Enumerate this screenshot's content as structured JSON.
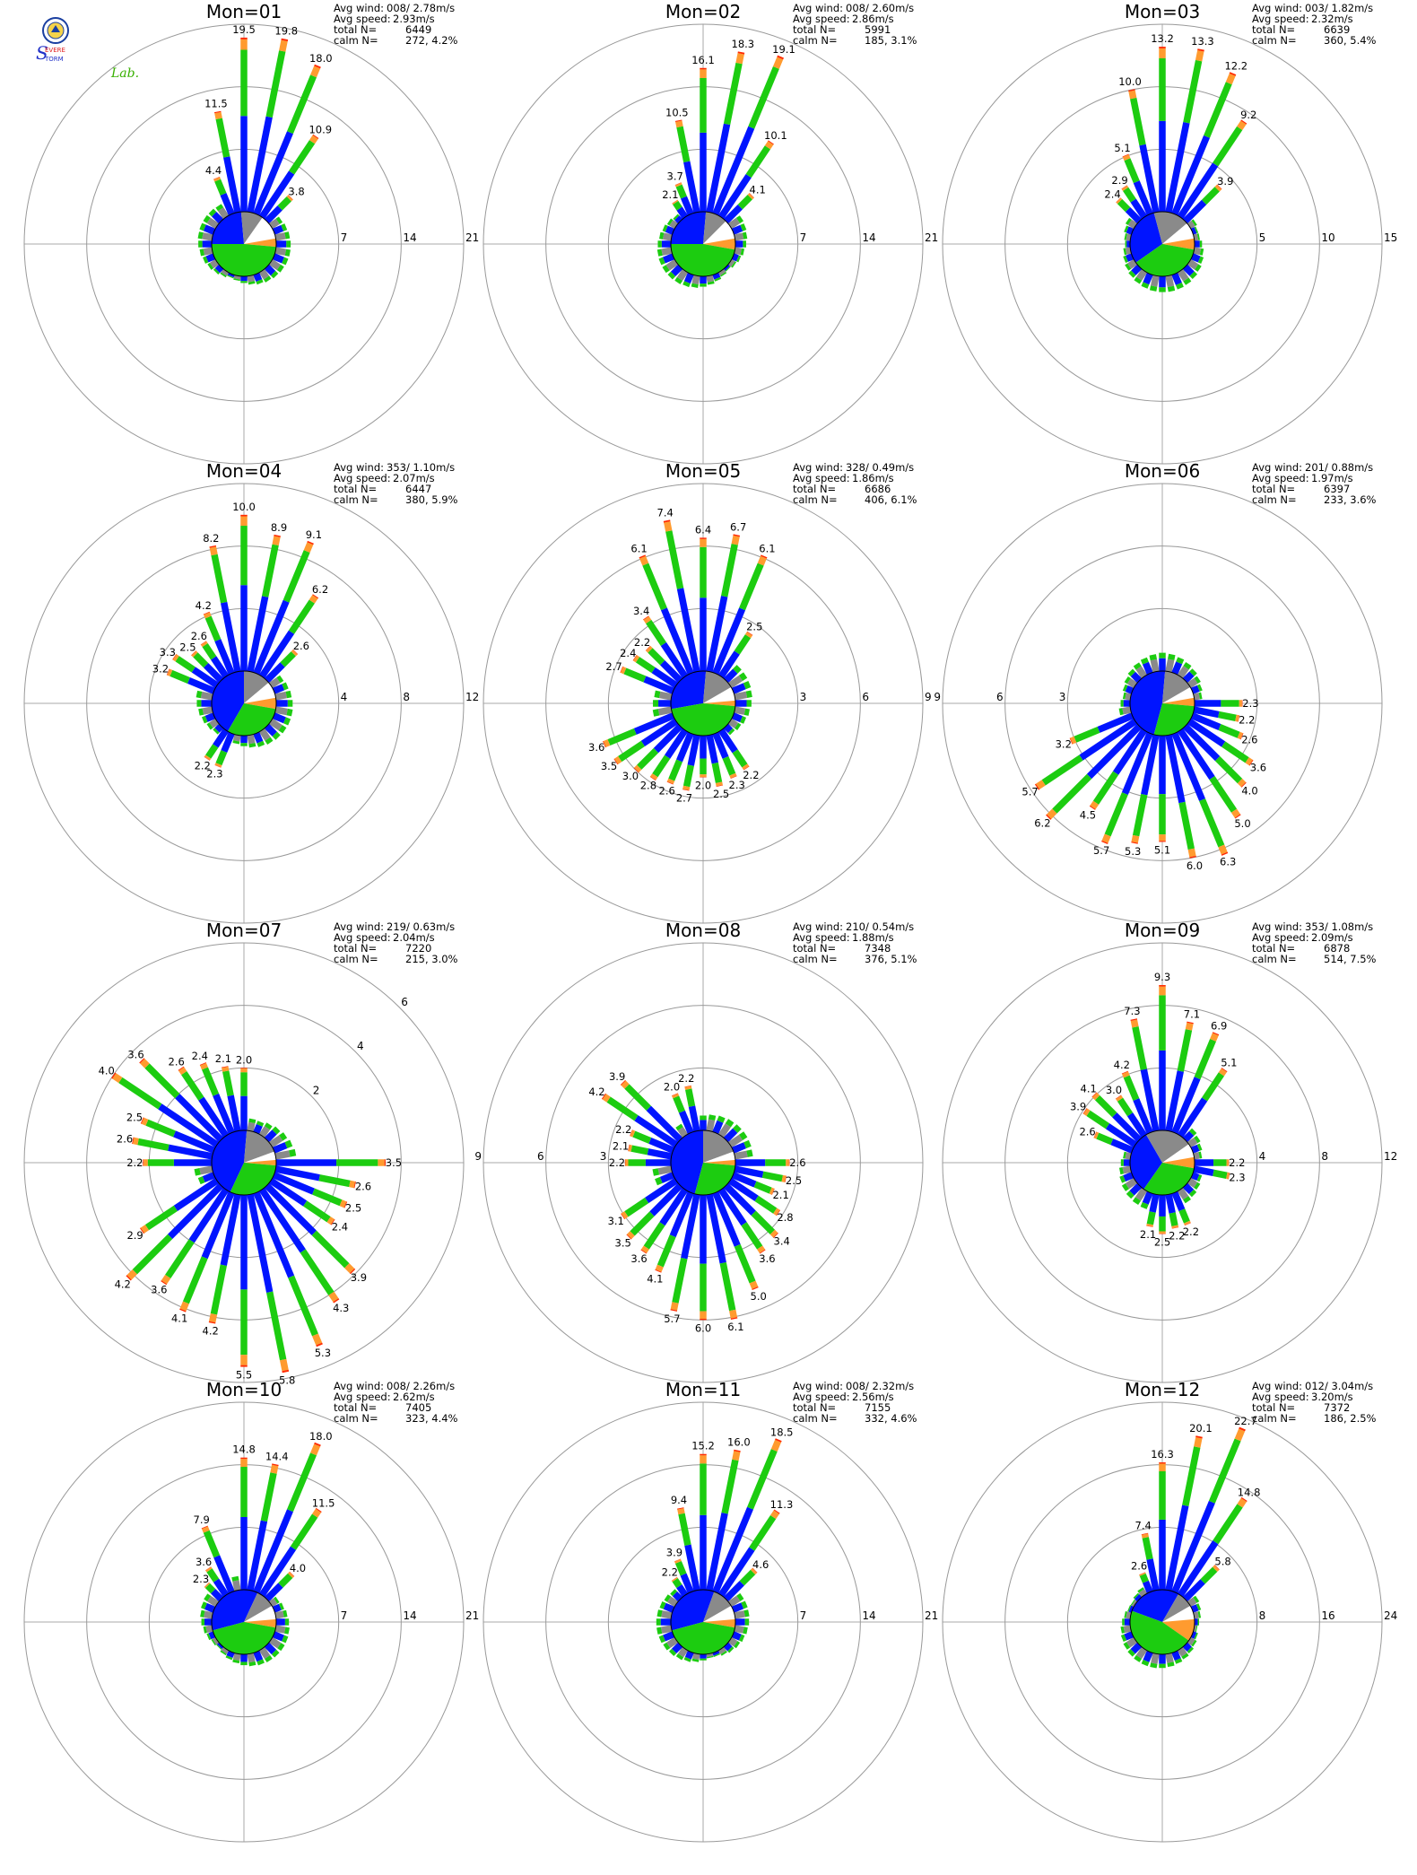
{
  "logo": {
    "text": "Severe Storm Lab."
  },
  "colors": {
    "blue": "#0014ff",
    "green": "#1ccc10",
    "orange": "#ff9b2f",
    "red": "#ff2a00",
    "gray": "#8a8a8a",
    "grid": "#999999",
    "axis": "#aaaaaa"
  },
  "chart_data": [
    {
      "type": "windrose",
      "title": "Mon=01",
      "avg_wind": "008/ 2.78m/s",
      "avg_speed": "2.93m/s",
      "total_n": "6449",
      "calm_n": "272,   4.2%",
      "rmax": 21,
      "rings": [
        "7",
        "14",
        "21"
      ],
      "ring_angle": 90,
      "labeled": [
        {
          "dir": 337.5,
          "v": 4.4
        },
        {
          "dir": 348.75,
          "v": 11.5
        },
        {
          "dir": 0,
          "v": 19.5
        },
        {
          "dir": 11.25,
          "v": 19.8
        },
        {
          "dir": 22.5,
          "v": 18.0
        },
        {
          "dir": 33.75,
          "v": 10.9
        },
        {
          "dir": 45,
          "v": 3.8
        }
      ],
      "pie": [
        {
          "c": "blue",
          "a": 270,
          "b": 355
        },
        {
          "c": "gray",
          "a": 355,
          "b": 35
        },
        {
          "c": "white",
          "a": 35,
          "b": 80
        },
        {
          "c": "orange",
          "a": 80,
          "b": 95
        },
        {
          "c": "green",
          "a": 95,
          "b": 270
        }
      ]
    },
    {
      "type": "windrose",
      "title": "Mon=02",
      "avg_wind": "008/ 2.60m/s",
      "avg_speed": "2.86m/s",
      "total_n": "5991",
      "calm_n": "185,   3.1%",
      "rmax": 21,
      "rings": [
        "7",
        "14",
        "21"
      ],
      "ring_angle": 90,
      "labeled": [
        {
          "dir": 326.25,
          "v": 2.1
        },
        {
          "dir": 337.5,
          "v": 3.7
        },
        {
          "dir": 348.75,
          "v": 10.5
        },
        {
          "dir": 0,
          "v": 16.1
        },
        {
          "dir": 11.25,
          "v": 18.3
        },
        {
          "dir": 22.5,
          "v": 19.1
        },
        {
          "dir": 33.75,
          "v": 10.1
        },
        {
          "dir": 45,
          "v": 4.1
        }
      ],
      "pie": [
        {
          "c": "blue",
          "a": 270,
          "b": 5
        },
        {
          "c": "gray",
          "a": 5,
          "b": 45
        },
        {
          "c": "white",
          "a": 45,
          "b": 80
        },
        {
          "c": "orange",
          "a": 80,
          "b": 100
        },
        {
          "c": "green",
          "a": 100,
          "b": 270
        }
      ]
    },
    {
      "type": "windrose",
      "title": "Mon=03",
      "avg_wind": "003/ 1.82m/s",
      "avg_speed": "2.32m/s",
      "total_n": "6639",
      "calm_n": "360,   5.4%",
      "rmax": 15,
      "rings": [
        "5",
        "10",
        "15"
      ],
      "ring_angle": 90,
      "labeled": [
        {
          "dir": 315,
          "v": 2.4
        },
        {
          "dir": 326.25,
          "v": 2.9
        },
        {
          "dir": 337.5,
          "v": 5.1
        },
        {
          "dir": 348.75,
          "v": 10.0
        },
        {
          "dir": 0,
          "v": 13.2
        },
        {
          "dir": 11.25,
          "v": 13.3
        },
        {
          "dir": 22.5,
          "v": 12.2
        },
        {
          "dir": 33.75,
          "v": 9.2
        },
        {
          "dir": 45,
          "v": 3.9
        }
      ],
      "pie": [
        {
          "c": "blue",
          "a": 235,
          "b": 345
        },
        {
          "c": "gray",
          "a": 345,
          "b": 50
        },
        {
          "c": "white",
          "a": 50,
          "b": 80
        },
        {
          "c": "orange",
          "a": 80,
          "b": 100
        },
        {
          "c": "green",
          "a": 100,
          "b": 235
        }
      ]
    },
    {
      "type": "windrose",
      "title": "Mon=04",
      "avg_wind": "353/ 1.10m/s",
      "avg_speed": "2.07m/s",
      "total_n": "6447",
      "calm_n": "380,   5.9%",
      "rmax": 12,
      "rings": [
        "4",
        "8",
        "12"
      ],
      "ring_angle": 90,
      "labeled": [
        {
          "dir": 292.5,
          "v": 3.2
        },
        {
          "dir": 303.75,
          "v": 3.3
        },
        {
          "dir": 315,
          "v": 2.5
        },
        {
          "dir": 326.25,
          "v": 2.6
        },
        {
          "dir": 337.5,
          "v": 4.2
        },
        {
          "dir": 348.75,
          "v": 8.2
        },
        {
          "dir": 0,
          "v": 10.0
        },
        {
          "dir": 11.25,
          "v": 8.9
        },
        {
          "dir": 22.5,
          "v": 9.1
        },
        {
          "dir": 33.75,
          "v": 6.2
        },
        {
          "dir": 45,
          "v": 2.6
        },
        {
          "dir": 202.5,
          "v": 2.3
        },
        {
          "dir": 213.75,
          "v": 2.2
        }
      ],
      "pie": [
        {
          "c": "blue",
          "a": 210,
          "b": 0
        },
        {
          "c": "gray",
          "a": 0,
          "b": 50
        },
        {
          "c": "white",
          "a": 50,
          "b": 80
        },
        {
          "c": "orange",
          "a": 80,
          "b": 100
        },
        {
          "c": "green",
          "a": 100,
          "b": 210
        }
      ]
    },
    {
      "type": "windrose",
      "title": "Mon=05",
      "avg_wind": "328/ 0.49m/s",
      "avg_speed": "1.86m/s",
      "total_n": "6686",
      "calm_n": "406,   6.1%",
      "rmax": 9,
      "rings": [
        "3",
        "6",
        "9"
      ],
      "ring_angle": 90,
      "labeled": [
        {
          "dir": 292.5,
          "v": 2.7
        },
        {
          "dir": 303.75,
          "v": 2.4
        },
        {
          "dir": 315,
          "v": 2.2
        },
        {
          "dir": 326.25,
          "v": 3.4
        },
        {
          "dir": 337.5,
          "v": 6.1
        },
        {
          "dir": 348.75,
          "v": 7.4
        },
        {
          "dir": 0,
          "v": 6.4
        },
        {
          "dir": 11.25,
          "v": 6.7
        },
        {
          "dir": 22.5,
          "v": 6.1
        },
        {
          "dir": 33.75,
          "v": 2.5
        },
        {
          "dir": 146.25,
          "v": 2.2
        },
        {
          "dir": 157.5,
          "v": 2.3
        },
        {
          "dir": 168.75,
          "v": 2.5
        },
        {
          "dir": 180,
          "v": 2.0
        },
        {
          "dir": 191.25,
          "v": 2.7
        },
        {
          "dir": 202.5,
          "v": 2.6
        },
        {
          "dir": 213.75,
          "v": 2.8
        },
        {
          "dir": 225,
          "v": 3.0
        },
        {
          "dir": 236.25,
          "v": 3.5
        },
        {
          "dir": 247.5,
          "v": 3.6
        }
      ],
      "pie": [
        {
          "c": "blue",
          "a": 260,
          "b": 5
        },
        {
          "c": "gray",
          "a": 5,
          "b": 60
        },
        {
          "c": "white",
          "a": 60,
          "b": 85
        },
        {
          "c": "orange",
          "a": 85,
          "b": 95
        },
        {
          "c": "green",
          "a": 95,
          "b": 260
        }
      ]
    },
    {
      "type": "windrose",
      "title": "Mon=06",
      "avg_wind": "201/ 0.88m/s",
      "avg_speed": "1.97m/s",
      "total_n": "6397",
      "calm_n": "233,   3.6%",
      "rmax": 9,
      "rings": [
        "3",
        "6",
        "9"
      ],
      "ring_angle": 270,
      "labeled": [
        {
          "dir": 90,
          "v": 2.3
        },
        {
          "dir": 101.25,
          "v": 2.2
        },
        {
          "dir": 112.5,
          "v": 2.6
        },
        {
          "dir": 123.75,
          "v": 3.6
        },
        {
          "dir": 135,
          "v": 4.0
        },
        {
          "dir": 146.25,
          "v": 5.0
        },
        {
          "dir": 157.5,
          "v": 6.3
        },
        {
          "dir": 168.75,
          "v": 6.0
        },
        {
          "dir": 180,
          "v": 5.1
        },
        {
          "dir": 191.25,
          "v": 5.3
        },
        {
          "dir": 202.5,
          "v": 5.7
        },
        {
          "dir": 213.75,
          "v": 4.5
        },
        {
          "dir": 225,
          "v": 6.2
        },
        {
          "dir": 236.25,
          "v": 5.7
        },
        {
          "dir": 247.5,
          "v": 3.2
        }
      ],
      "pie": [
        {
          "c": "blue",
          "a": 195,
          "b": 5
        },
        {
          "c": "gray",
          "a": 5,
          "b": 60
        },
        {
          "c": "white",
          "a": 60,
          "b": 80
        },
        {
          "c": "orange",
          "a": 80,
          "b": 95
        },
        {
          "c": "green",
          "a": 95,
          "b": 195
        }
      ]
    },
    {
      "type": "windrose",
      "title": "Mon=07",
      "avg_wind": "219/ 0.63m/s",
      "avg_speed": "2.04m/s",
      "total_n": "7220",
      "calm_n": "215,   3.0%",
      "rmax": 6,
      "rings": [
        "2",
        "4",
        "6"
      ],
      "ring_angle": 45,
      "labeled": [
        {
          "dir": 90,
          "v": 3.5
        },
        {
          "dir": 101.25,
          "v": 2.6
        },
        {
          "dir": 112.5,
          "v": 2.5
        },
        {
          "dir": 123.75,
          "v": 2.4
        },
        {
          "dir": 135,
          "v": 3.9
        },
        {
          "dir": 146.25,
          "v": 4.3
        },
        {
          "dir": 157.5,
          "v": 5.3
        },
        {
          "dir": 168.75,
          "v": 5.8
        },
        {
          "dir": 180,
          "v": 5.5
        },
        {
          "dir": 191.25,
          "v": 4.2
        },
        {
          "dir": 202.5,
          "v": 4.1
        },
        {
          "dir": 213.75,
          "v": 3.6
        },
        {
          "dir": 225,
          "v": 4.2
        },
        {
          "dir": 236.25,
          "v": 2.9
        },
        {
          "dir": 270,
          "v": 2.2
        },
        {
          "dir": 281.25,
          "v": 2.6
        },
        {
          "dir": 292.5,
          "v": 2.5
        },
        {
          "dir": 303.75,
          "v": 4.0
        },
        {
          "dir": 315,
          "v": 3.6
        },
        {
          "dir": 326.25,
          "v": 2.6
        },
        {
          "dir": 337.5,
          "v": 2.4
        },
        {
          "dir": 348.75,
          "v": 2.1
        },
        {
          "dir": 0,
          "v": 2.0
        }
      ],
      "pie": [
        {
          "c": "blue",
          "a": 205,
          "b": 5
        },
        {
          "c": "gray",
          "a": 5,
          "b": 70
        },
        {
          "c": "white",
          "a": 70,
          "b": 85
        },
        {
          "c": "orange",
          "a": 85,
          "b": 95
        },
        {
          "c": "green",
          "a": 95,
          "b": 205
        }
      ]
    },
    {
      "type": "windrose",
      "title": "Mon=08",
      "avg_wind": "210/ 0.54m/s",
      "avg_speed": "1.88m/s",
      "total_n": "7348",
      "calm_n": "376,   5.1%",
      "rmax": 9,
      "rings": [
        "3",
        "6",
        "9"
      ],
      "ring_angle": 270,
      "labeled": [
        {
          "dir": 90,
          "v": 2.6
        },
        {
          "dir": 101.25,
          "v": 2.5
        },
        {
          "dir": 112.5,
          "v": 2.1
        },
        {
          "dir": 123.75,
          "v": 2.8
        },
        {
          "dir": 135,
          "v": 3.4
        },
        {
          "dir": 146.25,
          "v": 3.6
        },
        {
          "dir": 157.5,
          "v": 5.0
        },
        {
          "dir": 168.75,
          "v": 6.1
        },
        {
          "dir": 180,
          "v": 6.0
        },
        {
          "dir": 191.25,
          "v": 5.7
        },
        {
          "dir": 202.5,
          "v": 4.1
        },
        {
          "dir": 213.75,
          "v": 3.6
        },
        {
          "dir": 225,
          "v": 3.5
        },
        {
          "dir": 236.25,
          "v": 3.1
        },
        {
          "dir": 270,
          "v": 2.2
        },
        {
          "dir": 281.25,
          "v": 2.1
        },
        {
          "dir": 292.5,
          "v": 2.2
        },
        {
          "dir": 303.75,
          "v": 4.2
        },
        {
          "dir": 315,
          "v": 3.9
        },
        {
          "dir": 337.5,
          "v": 2.0
        },
        {
          "dir": 348.75,
          "v": 2.2
        }
      ],
      "pie": [
        {
          "c": "blue",
          "a": 195,
          "b": 0
        },
        {
          "c": "gray",
          "a": 0,
          "b": 70
        },
        {
          "c": "white",
          "a": 70,
          "b": 85
        },
        {
          "c": "orange",
          "a": 85,
          "b": 95
        },
        {
          "c": "green",
          "a": 95,
          "b": 195
        }
      ]
    },
    {
      "type": "windrose",
      "title": "Mon=09",
      "avg_wind": "353/ 1.08m/s",
      "avg_speed": "2.09m/s",
      "total_n": "6878",
      "calm_n": "514,   7.5%",
      "rmax": 12,
      "rings": [
        "4",
        "8",
        "12"
      ],
      "ring_angle": 90,
      "labeled": [
        {
          "dir": 292.5,
          "v": 2.6
        },
        {
          "dir": 303.75,
          "v": 3.9
        },
        {
          "dir": 315,
          "v": 4.1
        },
        {
          "dir": 326.25,
          "v": 3.0
        },
        {
          "dir": 337.5,
          "v": 4.2
        },
        {
          "dir": 348.75,
          "v": 7.3
        },
        {
          "dir": 0,
          "v": 9.3
        },
        {
          "dir": 11.25,
          "v": 7.1
        },
        {
          "dir": 22.5,
          "v": 6.9
        },
        {
          "dir": 33.75,
          "v": 5.1
        },
        {
          "dir": 90,
          "v": 2.2
        },
        {
          "dir": 101.25,
          "v": 2.3
        },
        {
          "dir": 157.5,
          "v": 2.2
        },
        {
          "dir": 168.75,
          "v": 2.2
        },
        {
          "dir": 180,
          "v": 2.5
        },
        {
          "dir": 191.25,
          "v": 2.1
        }
      ],
      "pie": [
        {
          "c": "blue",
          "a": 215,
          "b": 330
        },
        {
          "c": "gray",
          "a": 330,
          "b": 55
        },
        {
          "c": "white",
          "a": 55,
          "b": 80
        },
        {
          "c": "orange",
          "a": 80,
          "b": 100
        },
        {
          "c": "green",
          "a": 100,
          "b": 215
        }
      ]
    },
    {
      "type": "windrose",
      "title": "Mon=10",
      "avg_wind": "008/ 2.26m/s",
      "avg_speed": "2.62m/s",
      "total_n": "7405",
      "calm_n": "323,   4.4%",
      "rmax": 21,
      "rings": [
        "7",
        "14",
        "21"
      ],
      "ring_angle": 90,
      "labeled": [
        {
          "dir": 315,
          "v": 2.3
        },
        {
          "dir": 326.25,
          "v": 3.6
        },
        {
          "dir": 337.5,
          "v": 7.9
        },
        {
          "dir": 0,
          "v": 14.8
        },
        {
          "dir": 11.25,
          "v": 14.4
        },
        {
          "dir": 22.5,
          "v": 18.0
        },
        {
          "dir": 33.75,
          "v": 11.5
        },
        {
          "dir": 45,
          "v": 4.0
        }
      ],
      "pie": [
        {
          "c": "blue",
          "a": 255,
          "b": 25
        },
        {
          "c": "gray",
          "a": 25,
          "b": 60
        },
        {
          "c": "white",
          "a": 60,
          "b": 85
        },
        {
          "c": "orange",
          "a": 85,
          "b": 100
        },
        {
          "c": "green",
          "a": 100,
          "b": 255
        }
      ]
    },
    {
      "type": "windrose",
      "title": "Mon=11",
      "avg_wind": "008/ 2.32m/s",
      "avg_speed": "2.56m/s",
      "total_n": "7155",
      "calm_n": "332,   4.6%",
      "rmax": 21,
      "rings": [
        "7",
        "14",
        "21"
      ],
      "ring_angle": 90,
      "labeled": [
        {
          "dir": 326.25,
          "v": 2.2
        },
        {
          "dir": 337.5,
          "v": 3.9
        },
        {
          "dir": 348.75,
          "v": 9.4
        },
        {
          "dir": 0,
          "v": 15.2
        },
        {
          "dir": 11.25,
          "v": 16.0
        },
        {
          "dir": 22.5,
          "v": 18.5
        },
        {
          "dir": 33.75,
          "v": 11.3
        },
        {
          "dir": 45,
          "v": 4.6
        }
      ],
      "pie": [
        {
          "c": "blue",
          "a": 255,
          "b": 20
        },
        {
          "c": "gray",
          "a": 20,
          "b": 60
        },
        {
          "c": "white",
          "a": 60,
          "b": 85
        },
        {
          "c": "orange",
          "a": 85,
          "b": 100
        },
        {
          "c": "green",
          "a": 100,
          "b": 255
        }
      ]
    },
    {
      "type": "windrose",
      "title": "Mon=12",
      "avg_wind": "012/ 3.04m/s",
      "avg_speed": "3.20m/s",
      "total_n": "7372",
      "calm_n": "186,   2.5%",
      "rmax": 24,
      "rings": [
        "8",
        "16",
        "24"
      ],
      "ring_angle": 90,
      "labeled": [
        {
          "dir": 337.5,
          "v": 2.6
        },
        {
          "dir": 348.75,
          "v": 7.4
        },
        {
          "dir": 0,
          "v": 16.3
        },
        {
          "dir": 11.25,
          "v": 20.1
        },
        {
          "dir": 22.5,
          "v": 22.7
        },
        {
          "dir": 33.75,
          "v": 14.8
        },
        {
          "dir": 45,
          "v": 5.8
        }
      ],
      "pie": [
        {
          "c": "blue",
          "a": 290,
          "b": 30
        },
        {
          "c": "gray",
          "a": 30,
          "b": 60
        },
        {
          "c": "white",
          "a": 60,
          "b": 85
        },
        {
          "c": "orange",
          "a": 85,
          "b": 125
        },
        {
          "c": "green",
          "a": 125,
          "b": 290
        }
      ]
    }
  ]
}
